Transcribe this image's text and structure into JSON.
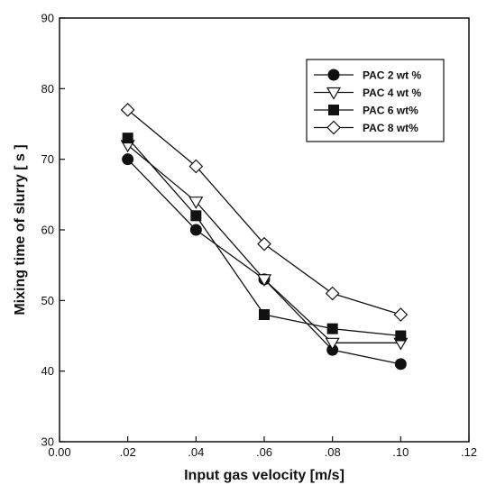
{
  "chart_data": {
    "type": "line",
    "xlabel": "Input gas velocity [m/s]",
    "ylabel": "Mixing time of slurry [ s ]",
    "xlim": [
      0,
      0.12
    ],
    "ylim": [
      30,
      90
    ],
    "x_ticks": [
      0,
      0.02,
      0.04,
      0.06,
      0.08,
      0.1,
      0.12
    ],
    "x_tick_labels": [
      "0.00",
      ".02",
      ".04",
      ".06",
      ".08",
      ".10",
      ".12"
    ],
    "y_ticks": [
      30,
      40,
      50,
      60,
      70,
      80,
      90
    ],
    "y_tick_labels": [
      "30",
      "40",
      "50",
      "60",
      "70",
      "80",
      "90"
    ],
    "x": [
      0.02,
      0.04,
      0.06,
      0.08,
      0.1
    ],
    "grid": false,
    "legend_position": "top-right",
    "series": [
      {
        "name": "PAC  2 wt %",
        "marker": "filled-circle",
        "values": [
          70,
          60,
          53,
          43,
          41
        ]
      },
      {
        "name": "PAC  4 wt %",
        "marker": "open-triangle-down",
        "values": [
          72,
          64,
          53,
          44,
          44
        ]
      },
      {
        "name": "PAC  6 wt%",
        "marker": "filled-square",
        "values": [
          73,
          62,
          48,
          46,
          45
        ]
      },
      {
        "name": "PAC  8 wt%",
        "marker": "open-diamond",
        "values": [
          77,
          69,
          58,
          51,
          48
        ]
      }
    ]
  }
}
